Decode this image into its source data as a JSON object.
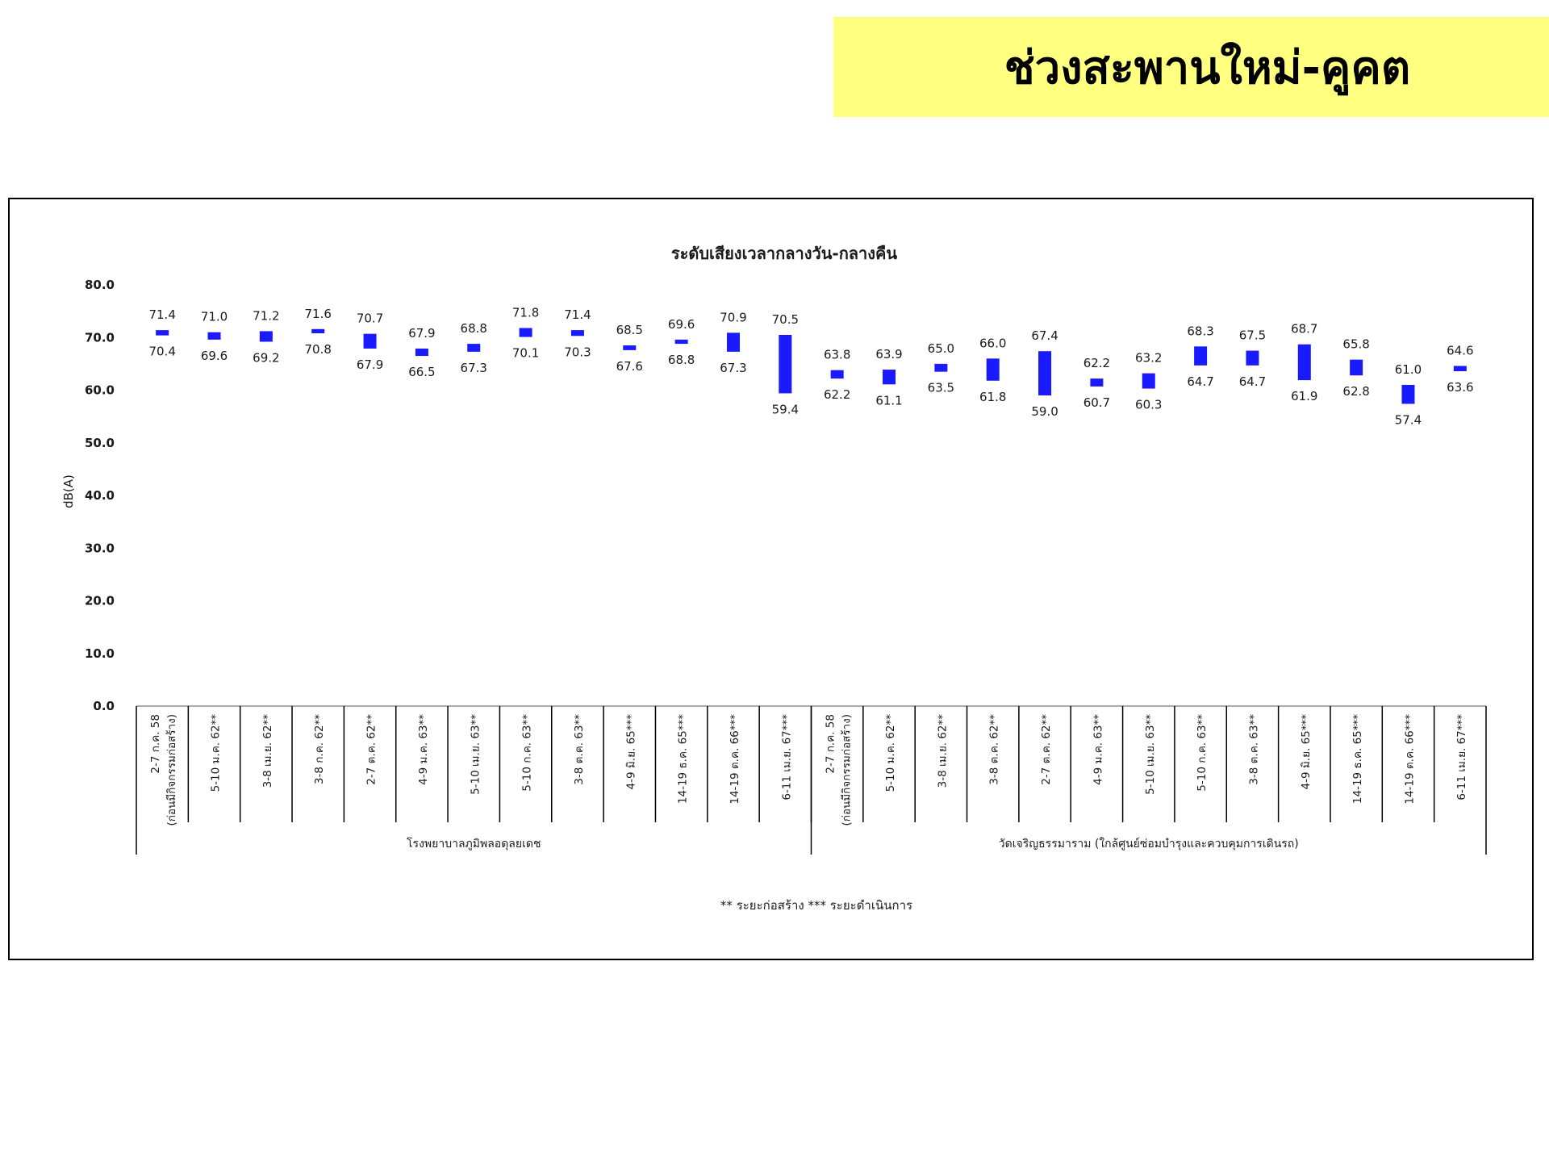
{
  "banner": {
    "title": "ช่วงสะพานใหม่-คูคต",
    "color": "#ffff80"
  },
  "chart_data": {
    "type": "bar",
    "subtype": "floating-range",
    "title": "ระดับเสียงเวลากลางวัน-กลางคืน",
    "ylabel": "dB(A)",
    "ylim": [
      0,
      80
    ],
    "yticks": [
      "0.0",
      "10.0",
      "20.0",
      "30.0",
      "40.0",
      "50.0",
      "60.0",
      "70.0",
      "80.0"
    ],
    "grid": false,
    "bar_color": "#1a1aff",
    "categories": [
      "2-7 ก.ค. 58 (ก่อนมีกิจกรรมก่อสร้าง)",
      "5-10 ม.ค. 62**",
      "3-8 เม.ย. 62**",
      "3-8 ก.ค. 62**",
      "2-7 ต.ค. 62**",
      "4-9 ม.ค. 63**",
      "5-10 เม.ย. 63**",
      "5-10 ก.ค. 63**",
      "3-8 ต.ค. 63**",
      "4-9 มิ.ย. 65***",
      "14-19 ธ.ค. 65***",
      "14-19 ต.ค. 66***",
      "6-11 เม.ย. 67***",
      "2-7 ก.ค. 58 (ก่อนมีกิจกรรมก่อสร้าง)",
      "5-10 ม.ค. 62**",
      "3-8 เม.ย. 62**",
      "3-8 ต.ค. 62**",
      "2-7 ต.ค. 62**",
      "4-9 ม.ค. 63**",
      "5-10 เม.ย. 63**",
      "5-10 ก.ค. 63**",
      "3-8 ต.ค. 63**",
      "4-9 มิ.ย. 65***",
      "14-19 ธ.ค. 65***",
      "14-19 ต.ค. 66***",
      "6-11 เม.ย. 67***"
    ],
    "groups": [
      {
        "name": "โรงพยาบาลภูมิพลอดุลยเดช",
        "count": 13
      },
      {
        "name": "วัดเจริญธรรมาราม (ใกล้ศูนย์ซ่อมบำรุงและควบคุมการเดินรถ)",
        "count": 13
      }
    ],
    "high": [
      71.4,
      71.0,
      71.2,
      71.6,
      70.7,
      67.9,
      68.8,
      71.8,
      71.4,
      68.5,
      69.6,
      70.9,
      70.5,
      63.8,
      63.9,
      65.0,
      66.0,
      67.4,
      62.2,
      63.2,
      68.3,
      67.5,
      68.7,
      65.8,
      61.0,
      64.6
    ],
    "low": [
      70.4,
      69.6,
      69.2,
      70.8,
      67.9,
      66.5,
      67.3,
      70.1,
      70.3,
      67.6,
      68.8,
      67.3,
      59.4,
      62.2,
      61.1,
      63.5,
      61.8,
      59.0,
      60.7,
      60.3,
      64.7,
      64.7,
      61.9,
      62.8,
      57.4,
      63.6
    ],
    "high_labels": [
      "71.4",
      "71.0",
      "71.2",
      "71.6",
      "70.7",
      "67.9",
      "68.8",
      "71.8",
      "71.4",
      "68.5",
      "69.6",
      "70.9",
      "70.5",
      "63.8",
      "63.9",
      "65.0",
      "66.0",
      "67.4",
      "62.2",
      "63.2",
      "68.3",
      "67.5",
      "68.7",
      "65.8",
      "61.0",
      "64.6"
    ],
    "low_labels": [
      "70.4",
      "69.6",
      "69.2",
      "70.8",
      "67.9",
      "66.5",
      "67.3",
      "70.1",
      "70.3",
      "67.6",
      "68.8",
      "67.3",
      "59.4",
      "62.2",
      "61.1",
      "63.5",
      "61.8",
      "59.0",
      "60.7",
      "60.3",
      "64.7",
      "64.7",
      "61.9",
      "62.8",
      "57.4",
      "63.6"
    ],
    "footnote": "** ระยะก่อสร้าง    *** ระยะดำเนินการ"
  }
}
